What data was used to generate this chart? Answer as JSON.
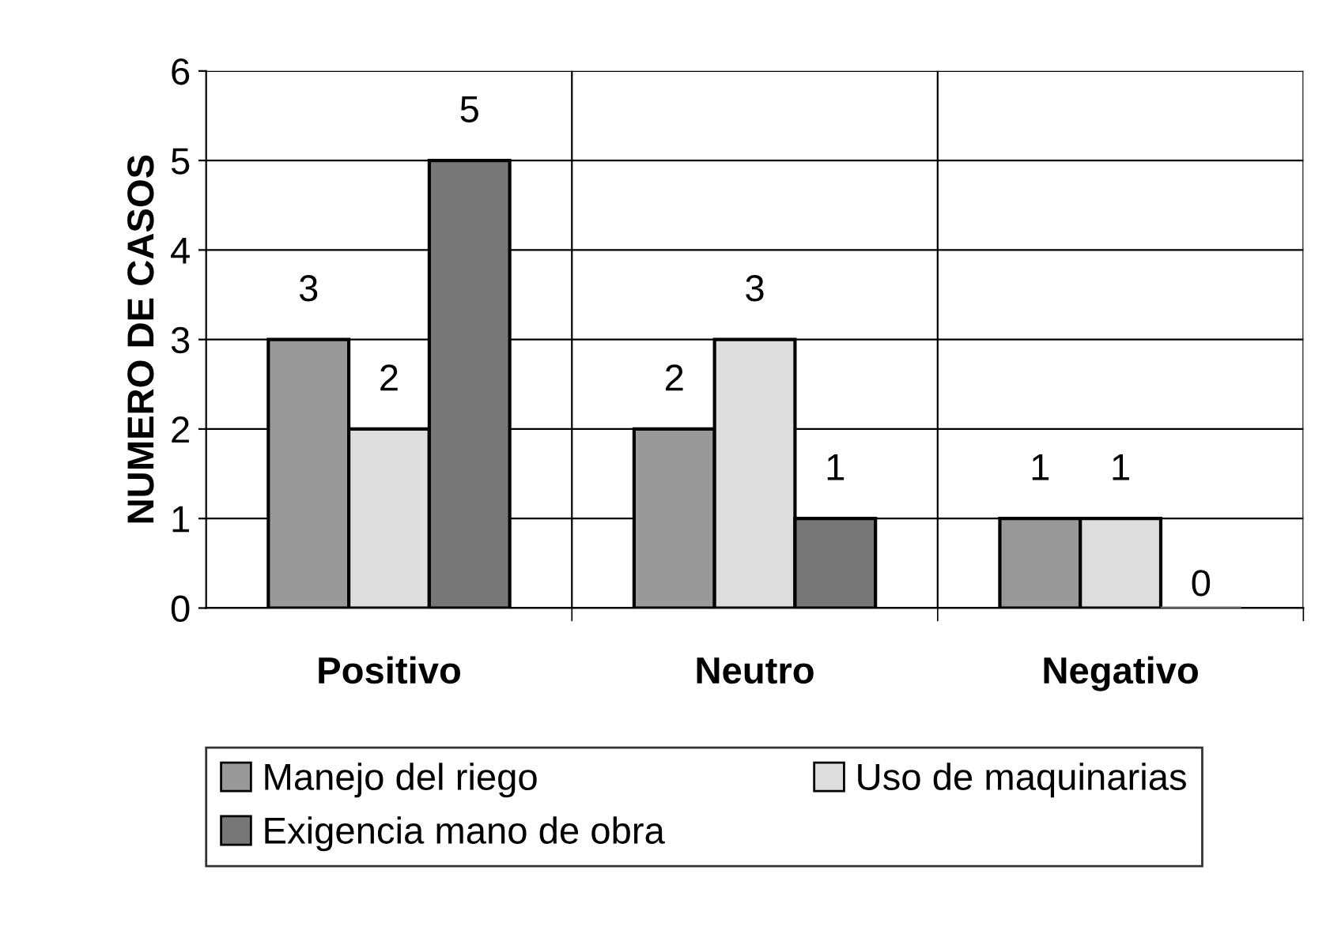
{
  "chart_data": {
    "type": "bar",
    "ylabel": "NUMERO DE CASOS",
    "categories": [
      "Positivo",
      "Neutro",
      "Negativo"
    ],
    "series": [
      {
        "name": "Manejo del riego",
        "color": "#999999",
        "values": [
          3,
          2,
          1
        ]
      },
      {
        "name": "Uso de maquinarias",
        "color": "#dddddd",
        "values": [
          2,
          3,
          1
        ]
      },
      {
        "name": "Exigencia mano de obra",
        "color": "#777777",
        "values": [
          5,
          1,
          0
        ]
      }
    ],
    "ylim": [
      0,
      6
    ],
    "yticks": [
      0,
      1,
      2,
      3,
      4,
      5,
      6
    ],
    "grid": true,
    "legend": "bottom",
    "data_labels": true
  }
}
